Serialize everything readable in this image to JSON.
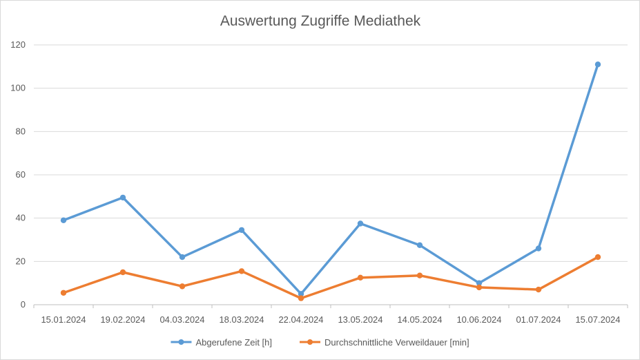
{
  "chart_data": {
    "type": "line",
    "title": "Auswertung Zugriffe Mediathek",
    "categories": [
      "15.01.2024",
      "19.02.2024",
      "04.03.2024",
      "18.03.2024",
      "22.04.2024",
      "13.05.2024",
      "14.05.2024",
      "10.06.2024",
      "01.07.2024",
      "15.07.2024"
    ],
    "series": [
      {
        "name": "Abgerufene Zeit [h]",
        "color": "#5b9bd5",
        "values": [
          39,
          49.5,
          22,
          34.5,
          5,
          37.5,
          27.5,
          10,
          26,
          111
        ]
      },
      {
        "name": "Durchschnittliche Verweildauer [min]",
        "color": "#ed7d31",
        "values": [
          5.5,
          15,
          8.5,
          15.5,
          3,
          12.5,
          13.5,
          8,
          7,
          22
        ]
      }
    ],
    "ylim": [
      0,
      120
    ],
    "yticks": [
      0,
      20,
      40,
      60,
      80,
      100,
      120
    ],
    "grid": true,
    "legend": "bottom"
  }
}
